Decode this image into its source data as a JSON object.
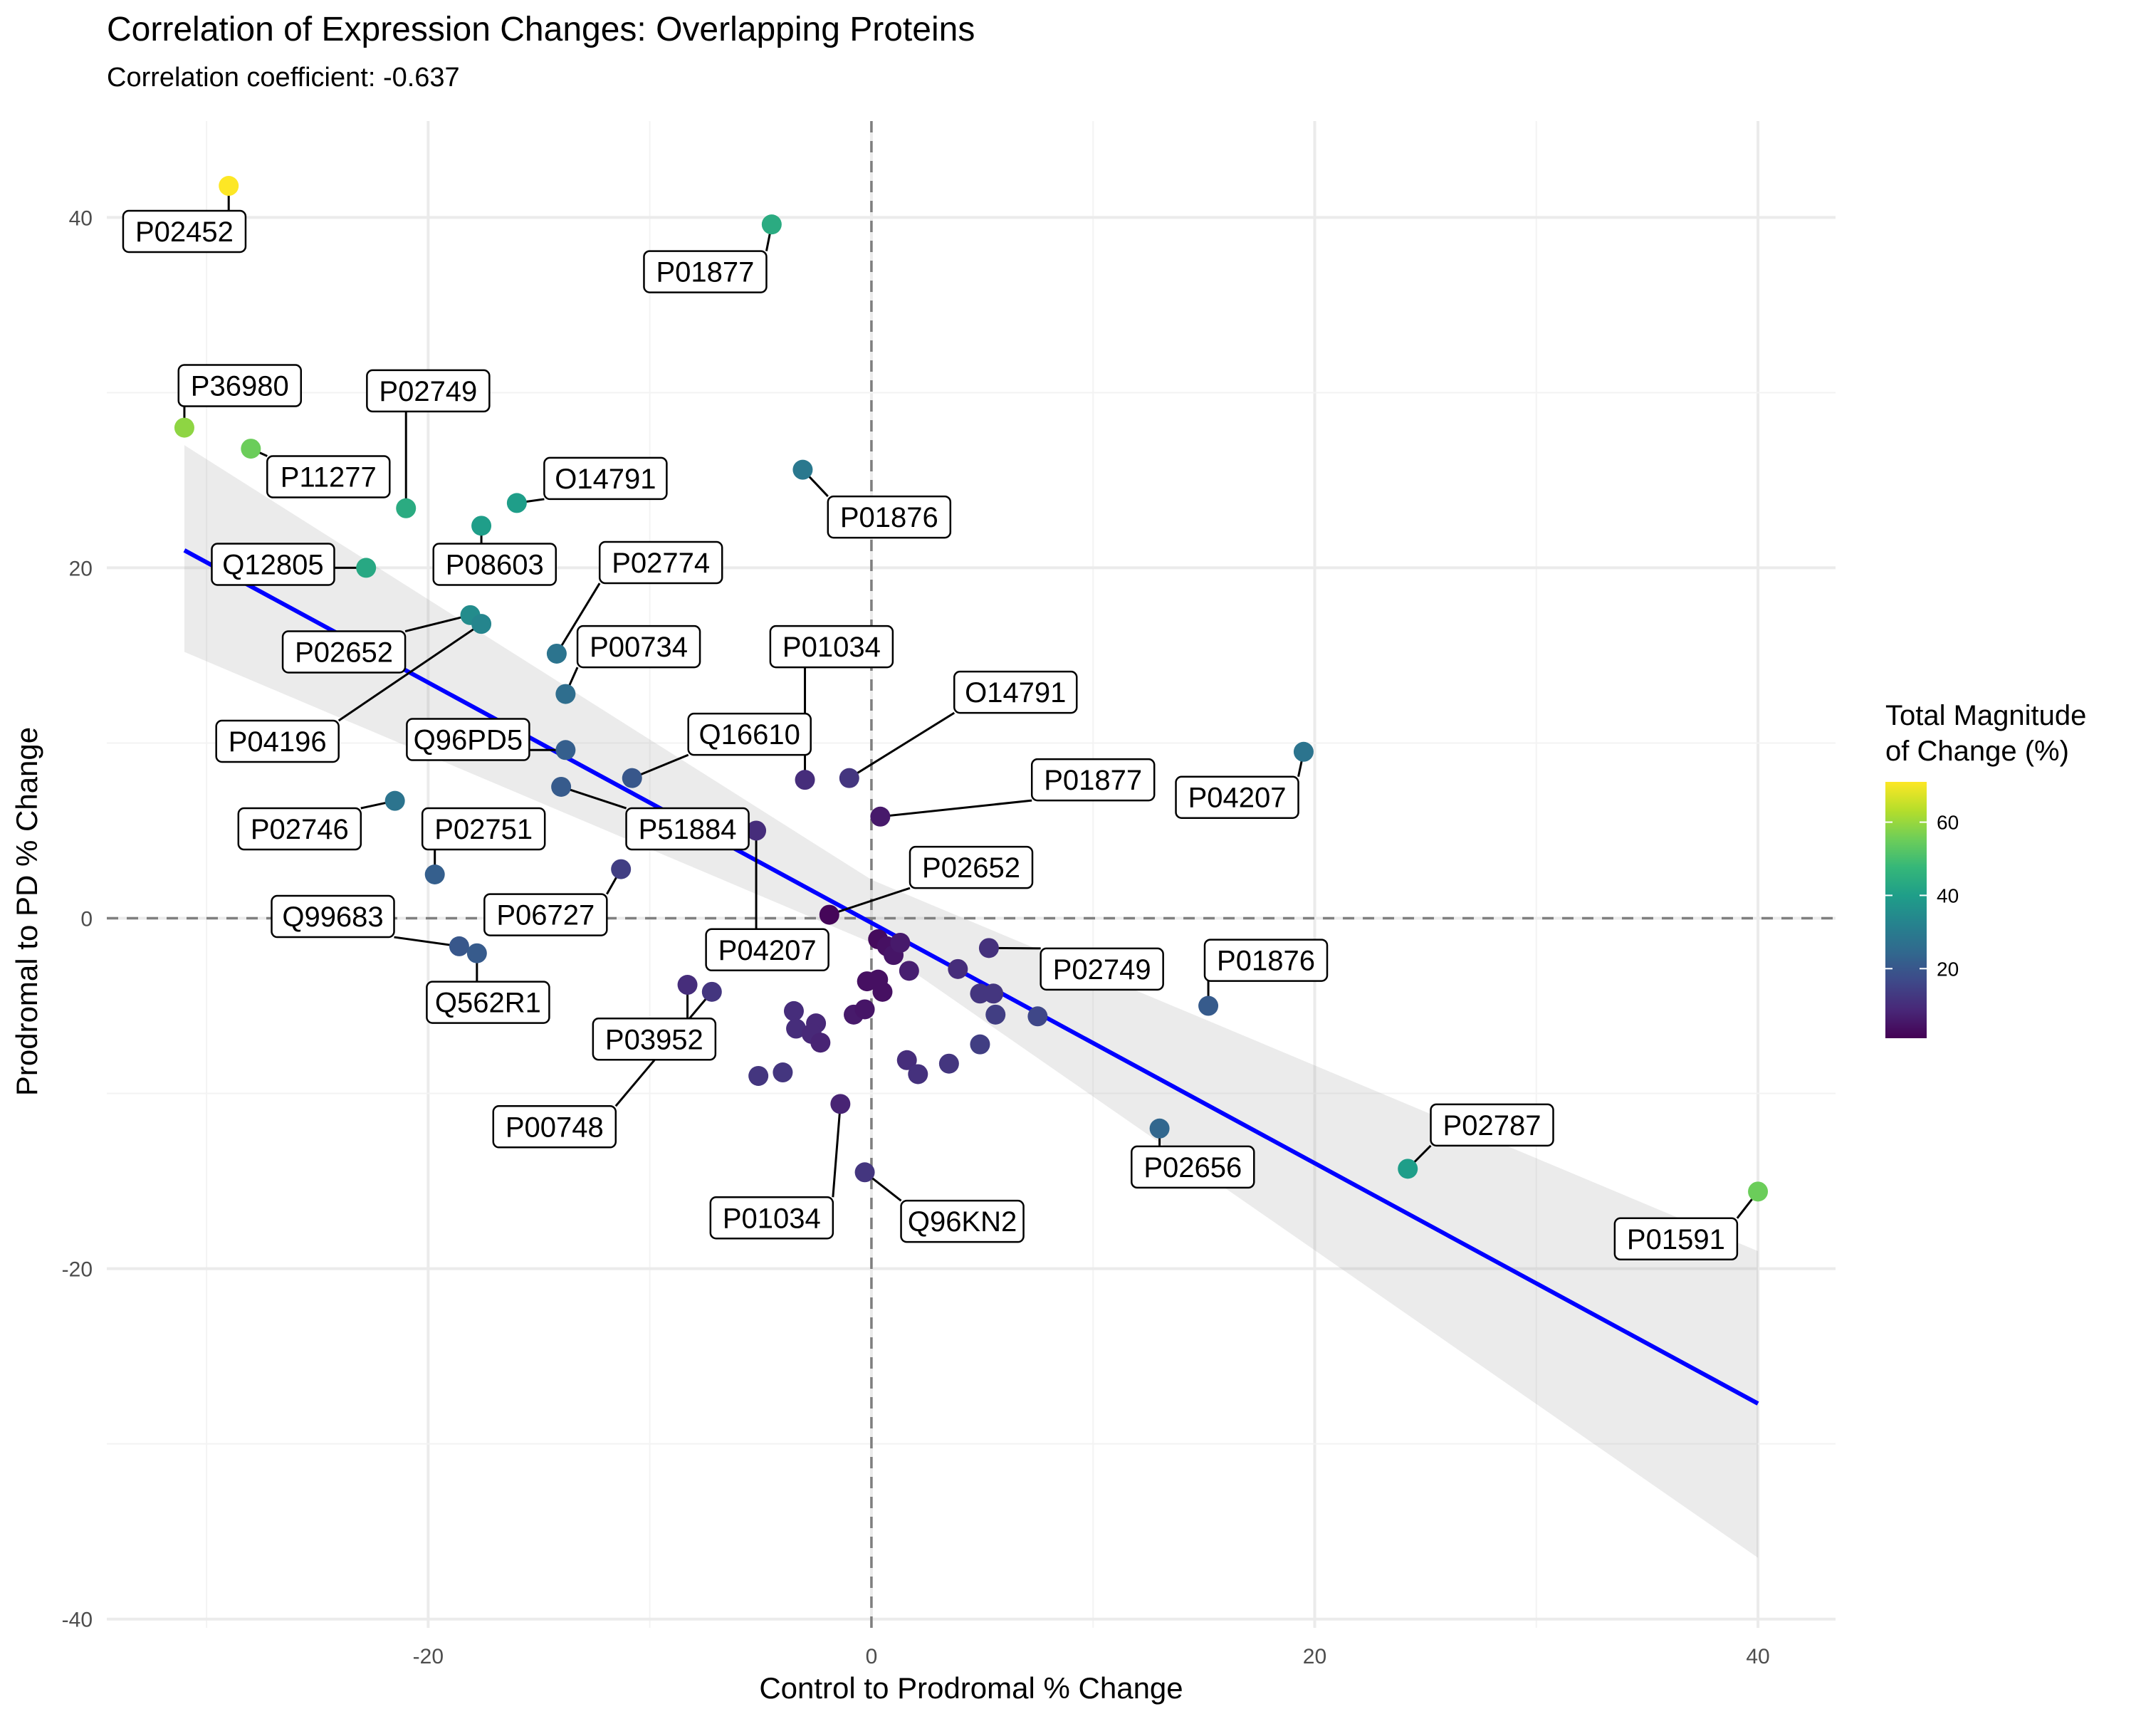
{
  "chart_data": {
    "type": "scatter",
    "title": "Correlation of Expression Changes: Overlapping Proteins",
    "subtitle": "Correlation coefficient: -0.637",
    "xlabel": "Control to Prodromal % Change",
    "ylabel": "Prodromal to PD % Change",
    "xlim": [
      -34.5,
      43.5
    ],
    "ylim": [
      -40.5,
      45.5
    ],
    "x_ticks": [
      -20,
      0,
      20,
      40
    ],
    "y_ticks": [
      -40,
      -20,
      0,
      20,
      40
    ],
    "x_tick_labels": [
      "-20",
      "0",
      "20",
      "40"
    ],
    "y_tick_labels": [
      "-40",
      "-20",
      "0",
      "20",
      "40"
    ],
    "grid": true,
    "reference_lines": {
      "x": 0,
      "y": 0,
      "style": "dashed"
    },
    "trend_line": {
      "x": [
        -31,
        40
      ],
      "y": [
        21,
        -27.7
      ],
      "color": "#0000ff"
    },
    "confidence_band": {
      "x": [
        -31,
        0,
        40
      ],
      "upper": [
        27,
        2.2,
        -19
      ],
      "lower": [
        15.2,
        -1.4,
        -36.5
      ]
    },
    "color_scale": {
      "title_line1": "Total Magnitude",
      "title_line2": "of Change (%)",
      "min": 1,
      "max": 71,
      "ticks": [
        20,
        40,
        60
      ],
      "tick_labels": [
        "20",
        "40",
        "60"
      ],
      "colors": [
        "#440154",
        "#482878",
        "#3e4989",
        "#31688e",
        "#26828e",
        "#1f9e89",
        "#35b779",
        "#6ece58",
        "#b5de2b",
        "#fde725"
      ]
    },
    "points": [
      {
        "x": -29,
        "y": 41.8,
        "c": 71,
        "label": "P02452",
        "lx": -31,
        "ly": 39.2
      },
      {
        "x": -4.5,
        "y": 39.6,
        "c": 44,
        "label": "P01877",
        "lx": -7.5,
        "ly": 36.9
      },
      {
        "x": -31,
        "y": 28,
        "c": 59,
        "label": "P36980",
        "lx": -28.5,
        "ly": 30.4
      },
      {
        "x": -28,
        "y": 26.8,
        "c": 55,
        "label": "P11277",
        "lx": -24.5,
        "ly": 25.2
      },
      {
        "x": -21,
        "y": 23.4,
        "c": 44,
        "label": "P02749",
        "lx": -20,
        "ly": 30.1
      },
      {
        "x": -16,
        "y": 23.7,
        "c": 40,
        "label": "O14791",
        "lx": -12,
        "ly": 25.1
      },
      {
        "x": -17.6,
        "y": 22.4,
        "c": 40,
        "label": "P08603",
        "lx": -17,
        "ly": 20.2
      },
      {
        "x": -3.1,
        "y": 25.6,
        "c": 29,
        "label": "P01876",
        "lx": 0.8,
        "ly": 22.9
      },
      {
        "x": -22.8,
        "y": 20,
        "c": 43,
        "label": "Q12805",
        "lx": -27,
        "ly": 20.2
      },
      {
        "x": -18.1,
        "y": 17.3,
        "c": 35,
        "label": "P02652",
        "lx": -23.8,
        "ly": 15.2
      },
      {
        "x": -17.6,
        "y": 16.8,
        "c": 33,
        "label": "P04196",
        "lx": -26.8,
        "ly": 10.1
      },
      {
        "x": -14.2,
        "y": 15.1,
        "c": 28,
        "label": "P02774",
        "lx": -9.5,
        "ly": 20.3
      },
      {
        "x": -13.8,
        "y": 12.8,
        "c": 26,
        "label": "P00734",
        "lx": -10.5,
        "ly": 15.5
      },
      {
        "x": -13.8,
        "y": 9.6,
        "c": 22,
        "label": "Q96PD5",
        "lx": -18.2,
        "ly": 10.2
      },
      {
        "x": -10.8,
        "y": 8,
        "c": 20,
        "label": "Q16610",
        "lx": -5.5,
        "ly": 10.5
      },
      {
        "x": -3,
        "y": 7.9,
        "c": 10,
        "label": "P01034",
        "lx": -1.8,
        "ly": 15.5
      },
      {
        "x": -1,
        "y": 8,
        "c": 12,
        "label": "O14791",
        "lx": 6.5,
        "ly": 12.9
      },
      {
        "x": 0.4,
        "y": 5.8,
        "c": 6,
        "label": "P01877",
        "lx": 10,
        "ly": 7.9
      },
      {
        "x": 19.5,
        "y": 9.5,
        "c": 28,
        "label": "P04207",
        "lx": 16.5,
        "ly": 6.9
      },
      {
        "x": -21.5,
        "y": 6.7,
        "c": 28,
        "label": "P02746",
        "lx": -25.8,
        "ly": 5.1
      },
      {
        "x": -14,
        "y": 7.5,
        "c": 21,
        "label": "P51884",
        "lx": -8.3,
        "ly": 5.1
      },
      {
        "x": -5.2,
        "y": 5,
        "c": 10,
        "label": "P04207",
        "lx": -4.7,
        "ly": -1.8
      },
      {
        "x": -19.7,
        "y": 2.5,
        "c": 22,
        "label": "P02751",
        "lx": -17.5,
        "ly": 5.1
      },
      {
        "x": -11.3,
        "y": 2.8,
        "c": 14,
        "label": "P06727",
        "lx": -14.7,
        "ly": 0.2
      },
      {
        "x": -1.9,
        "y": 0.2,
        "c": 2,
        "label": "P02652",
        "lx": 4.5,
        "ly": 2.9
      },
      {
        "x": -18.6,
        "y": -1.6,
        "c": 20,
        "label": "Q99683",
        "lx": -24.3,
        "ly": 0.1
      },
      {
        "x": -17.8,
        "y": -2,
        "c": 21,
        "label": "Q562R1",
        "lx": -17.3,
        "ly": -4.8
      },
      {
        "x": -8.3,
        "y": -3.8,
        "c": 10,
        "label": "P03952",
        "lx": -9.8,
        "ly": -6.9
      },
      {
        "x": -7.2,
        "y": -4.2,
        "c": 12,
        "label": "P00748",
        "lx": -14.3,
        "ly": -11.9
      },
      {
        "x": 15.2,
        "y": -5,
        "c": 21,
        "label": "P01876",
        "lx": 17.8,
        "ly": -2.4
      },
      {
        "x": 5.3,
        "y": -1.7,
        "c": 11,
        "label": "P02749",
        "lx": 10.4,
        "ly": -2.9
      },
      {
        "x": -1.4,
        "y": -10.6,
        "c": 8,
        "label": "P01034",
        "lx": -4.5,
        "ly": -17.1
      },
      {
        "x": -0.3,
        "y": -14.5,
        "c": 12,
        "label": "Q96KN2",
        "lx": 4.1,
        "ly": -17.3
      },
      {
        "x": 13,
        "y": -12,
        "c": 24,
        "label": "P02656",
        "lx": 14.5,
        "ly": -14.2
      },
      {
        "x": 24.2,
        "y": -14.3,
        "c": 40,
        "label": "P02787",
        "lx": 28,
        "ly": -11.8
      },
      {
        "x": 40,
        "y": -15.6,
        "c": 55,
        "label": "P01591",
        "lx": 36.3,
        "ly": -18.3
      },
      {
        "x": -5.1,
        "y": -9,
        "c": 12,
        "label": "",
        "lx": null,
        "ly": null
      },
      {
        "x": -4,
        "y": -8.8,
        "c": 12,
        "label": "",
        "lx": null,
        "ly": null
      },
      {
        "x": -3.5,
        "y": -5.3,
        "c": 10,
        "label": "",
        "lx": null,
        "ly": null
      },
      {
        "x": -3.4,
        "y": -6.3,
        "c": 10,
        "label": "",
        "lx": null,
        "ly": null
      },
      {
        "x": -2.5,
        "y": -6,
        "c": 9,
        "label": "",
        "lx": null,
        "ly": null
      },
      {
        "x": -2.7,
        "y": -6.6,
        "c": 9,
        "label": "",
        "lx": null,
        "ly": null
      },
      {
        "x": -2.3,
        "y": -7.1,
        "c": 8,
        "label": "",
        "lx": null,
        "ly": null
      },
      {
        "x": -0.8,
        "y": -5.5,
        "c": 6,
        "label": "",
        "lx": null,
        "ly": null
      },
      {
        "x": -0.3,
        "y": -5.2,
        "c": 5,
        "label": "",
        "lx": null,
        "ly": null
      },
      {
        "x": -0.2,
        "y": -3.6,
        "c": 4,
        "label": "",
        "lx": null,
        "ly": null
      },
      {
        "x": 0.3,
        "y": -3.5,
        "c": 4,
        "label": "",
        "lx": null,
        "ly": null
      },
      {
        "x": 0.5,
        "y": -4.2,
        "c": 4,
        "label": "",
        "lx": null,
        "ly": null
      },
      {
        "x": 0.3,
        "y": -1.2,
        "c": 3,
        "label": "",
        "lx": null,
        "ly": null
      },
      {
        "x": 0.7,
        "y": -1.6,
        "c": 4,
        "label": "",
        "lx": null,
        "ly": null
      },
      {
        "x": 1,
        "y": -2.1,
        "c": 5,
        "label": "",
        "lx": null,
        "ly": null
      },
      {
        "x": 1.3,
        "y": -1.4,
        "c": 6,
        "label": "",
        "lx": null,
        "ly": null
      },
      {
        "x": 1.7,
        "y": -3,
        "c": 7,
        "label": "",
        "lx": null,
        "ly": null
      },
      {
        "x": 1.6,
        "y": -8.1,
        "c": 10,
        "label": "",
        "lx": null,
        "ly": null
      },
      {
        "x": 2.1,
        "y": -8.9,
        "c": 11,
        "label": "",
        "lx": null,
        "ly": null
      },
      {
        "x": 3.5,
        "y": -8.3,
        "c": 12,
        "label": "",
        "lx": null,
        "ly": null
      },
      {
        "x": 3.9,
        "y": -2.9,
        "c": 10,
        "label": "",
        "lx": null,
        "ly": null
      },
      {
        "x": 4.9,
        "y": -4.3,
        "c": 12,
        "label": "",
        "lx": null,
        "ly": null
      },
      {
        "x": 5.5,
        "y": -4.3,
        "c": 12,
        "label": "",
        "lx": null,
        "ly": null
      },
      {
        "x": 5.6,
        "y": -5.5,
        "c": 14,
        "label": "",
        "lx": null,
        "ly": null
      },
      {
        "x": 4.9,
        "y": -7.2,
        "c": 14,
        "label": "",
        "lx": null,
        "ly": null
      },
      {
        "x": 7.5,
        "y": -5.6,
        "c": 16,
        "label": "",
        "lx": null,
        "ly": null
      }
    ]
  }
}
